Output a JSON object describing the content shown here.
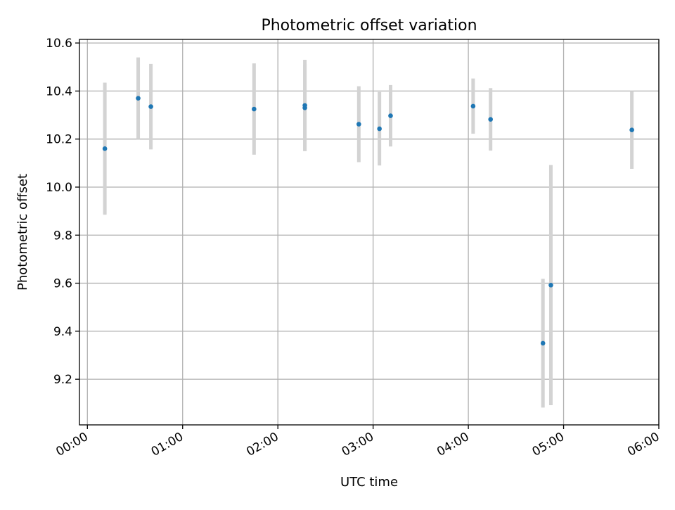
{
  "chart_data": {
    "type": "scatter",
    "title": "Photometric offset variation",
    "xlabel": "UTC time",
    "ylabel": "Photometric offset",
    "x_unit": "UTC time (HH:MM)",
    "xlim": [
      "23:55",
      "06:00"
    ],
    "ylim": [
      9.01,
      10.615
    ],
    "x_ticks": [
      "00:00",
      "01:00",
      "02:00",
      "03:00",
      "04:00",
      "05:00",
      "06:00"
    ],
    "y_ticks": [
      9.2,
      9.4,
      9.6,
      9.8,
      10.0,
      10.2,
      10.4,
      10.6
    ],
    "y_tick_labels": [
      "9.2",
      "9.4",
      "9.6",
      "9.8",
      "10.0",
      "10.2",
      "10.4",
      "10.6"
    ],
    "grid": true,
    "series": [
      {
        "points": [
          {
            "x": "00:11",
            "y": 10.16,
            "err": 0.275
          },
          {
            "x": "00:32",
            "y": 10.37,
            "err": 0.17
          },
          {
            "x": "00:40",
            "y": 10.335,
            "err": 0.178
          },
          {
            "x": "01:45",
            "y": 10.325,
            "err": 0.19
          },
          {
            "x": "02:17",
            "y": 10.34,
            "err": 0.19
          },
          {
            "x": "02:17",
            "y": 10.33,
            "err": 0.18
          },
          {
            "x": "02:51",
            "y": 10.262,
            "err": 0.158
          },
          {
            "x": "03:04",
            "y": 10.243,
            "err": 0.153
          },
          {
            "x": "03:11",
            "y": 10.297,
            "err": 0.128
          },
          {
            "x": "04:03",
            "y": 10.337,
            "err": 0.115
          },
          {
            "x": "04:14",
            "y": 10.282,
            "err": 0.13
          },
          {
            "x": "04:47",
            "y": 9.35,
            "err": 0.268
          },
          {
            "x": "04:52",
            "y": 9.592,
            "err": 0.5
          },
          {
            "x": "05:43",
            "y": 10.238,
            "err": 0.162
          }
        ]
      }
    ],
    "colors": {
      "marker": "#1f77b4",
      "errorbar": "#d3d3d3",
      "grid": "#b0b0b0",
      "axes": "#000000"
    }
  }
}
